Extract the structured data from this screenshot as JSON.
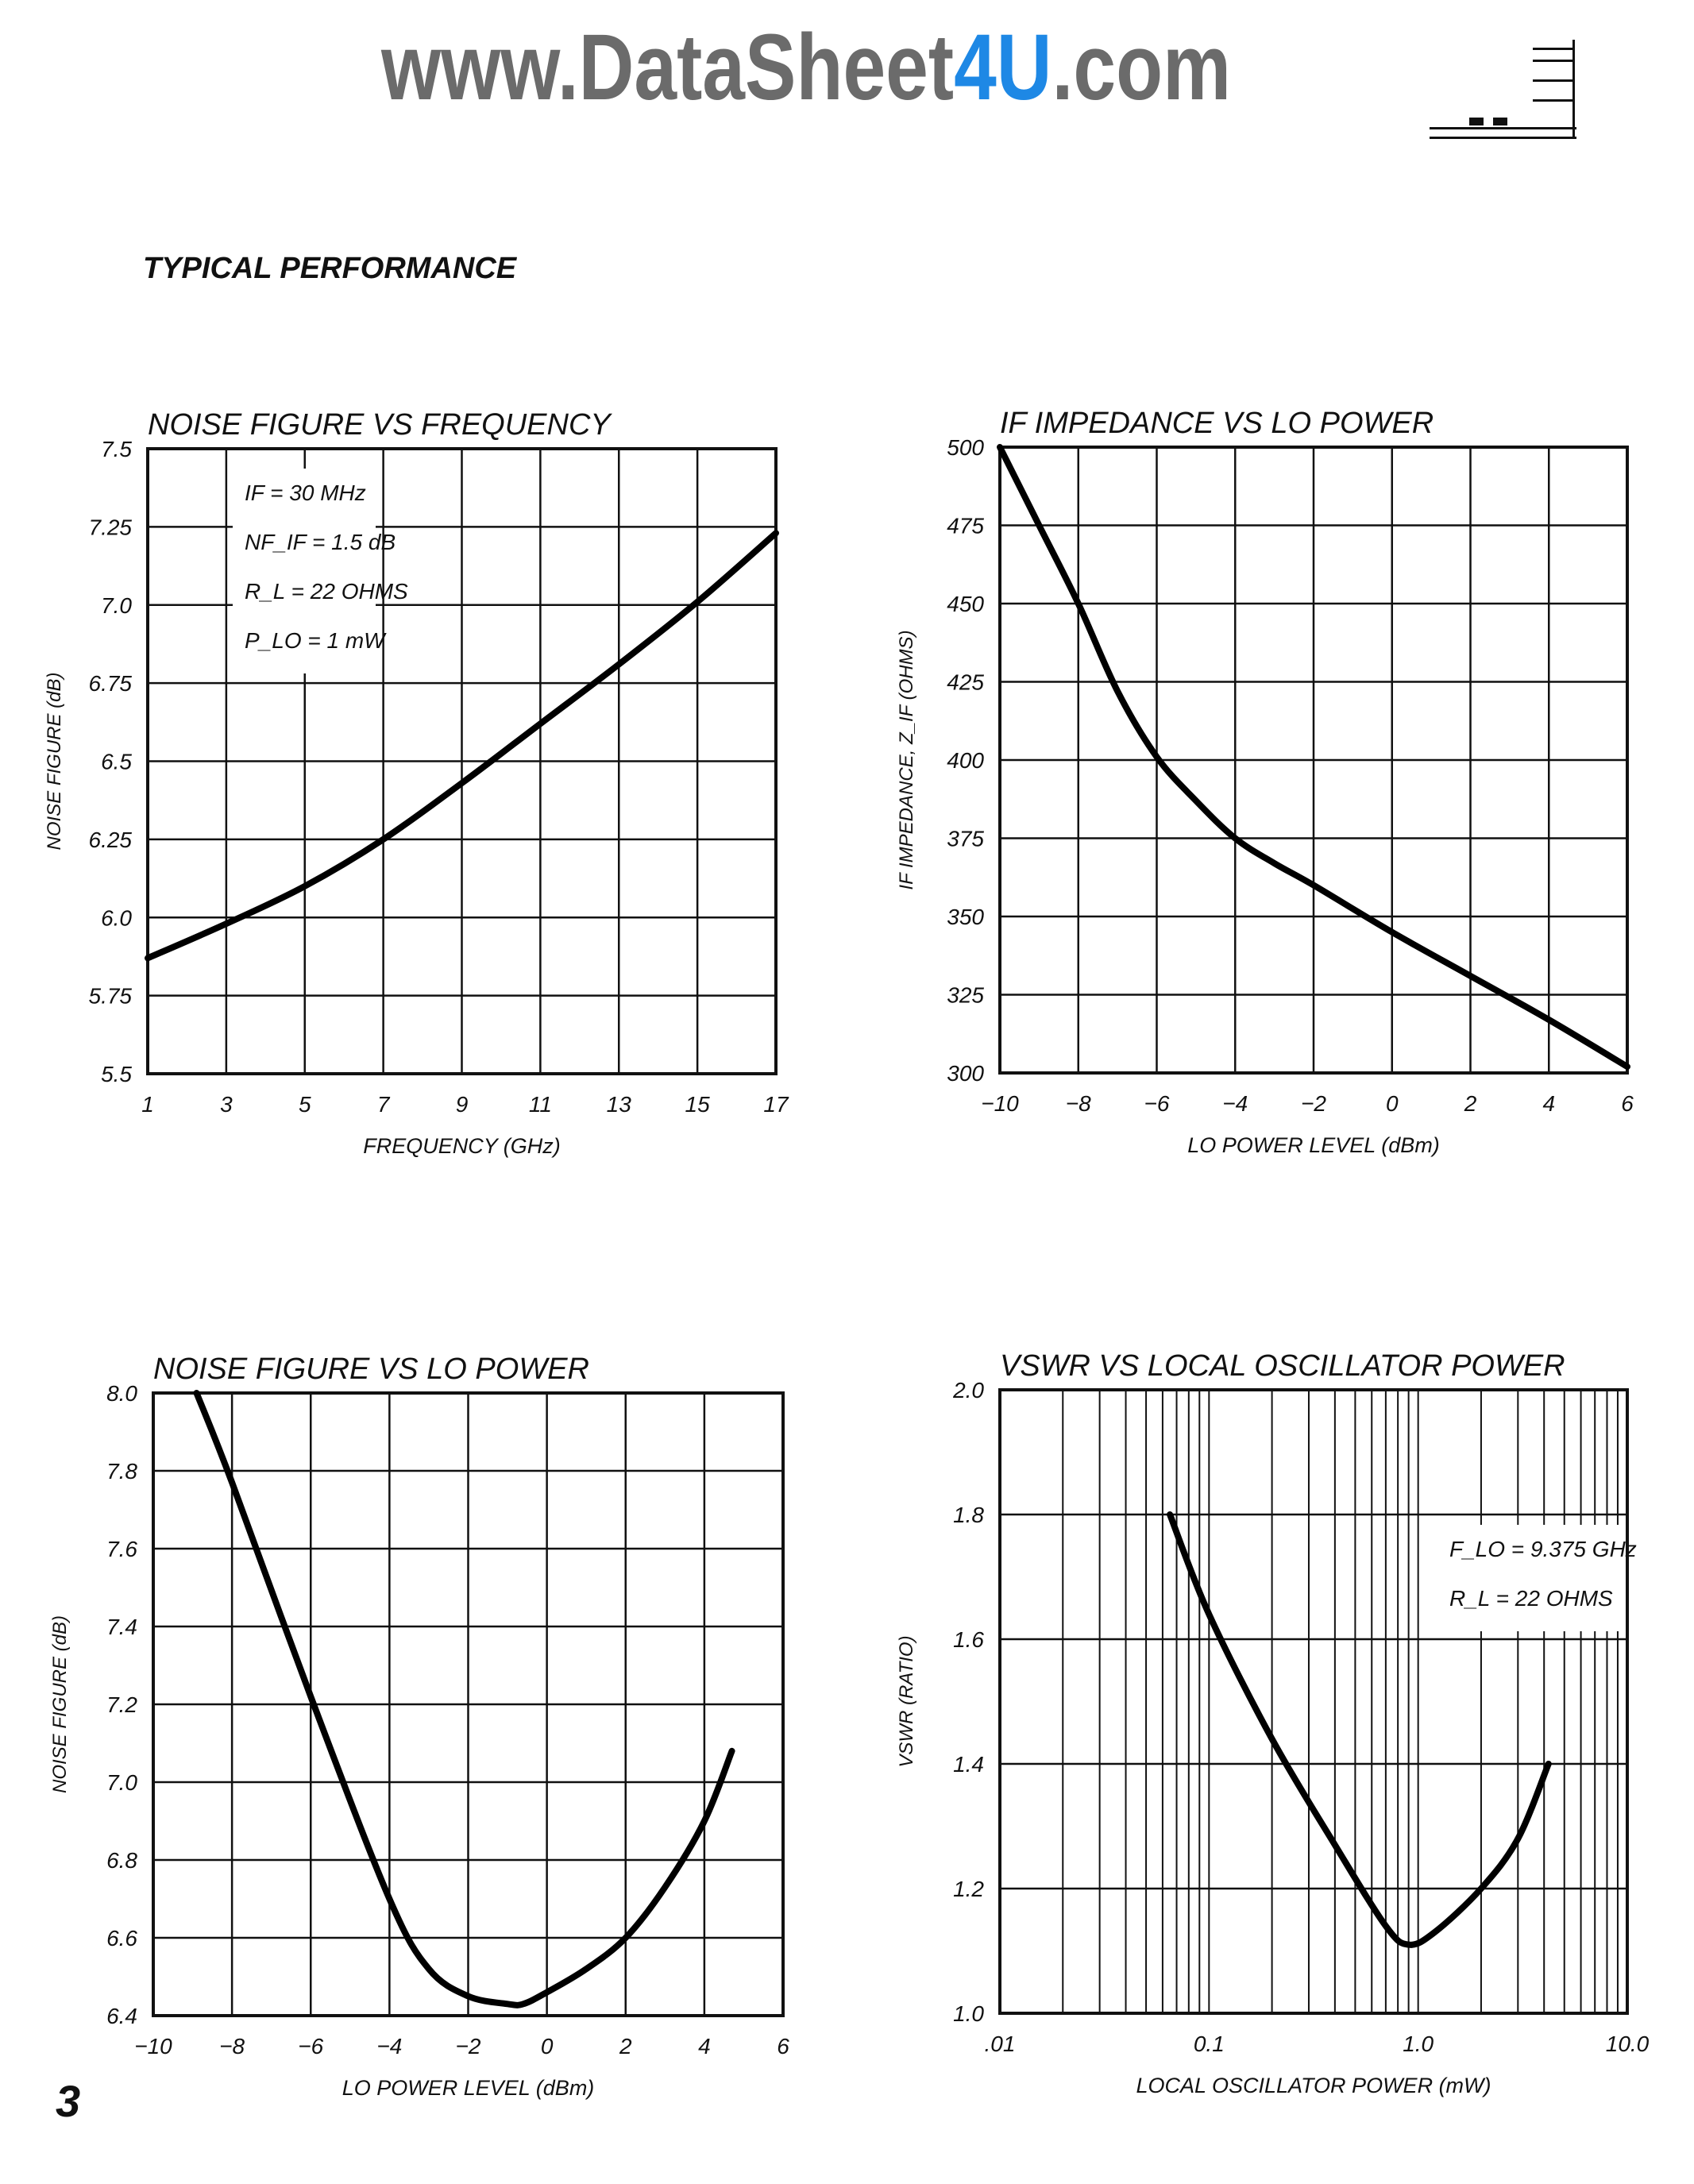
{
  "watermark": {
    "prefix": "www.DataSheet",
    "accent": "4U",
    "suffix": ".com",
    "accent_color": "#1e88e5",
    "text_color": "#6b6b6b"
  },
  "section_title": "TYPICAL PERFORMANCE",
  "page_number": "3",
  "chart_data": [
    {
      "type": "line",
      "title": "NOISE FIGURE VS FREQUENCY",
      "xlabel": "FREQUENCY (GHz)",
      "ylabel": "NOISE FIGURE (dB)",
      "xlim": [
        1,
        17
      ],
      "ylim": [
        5.5,
        7.5
      ],
      "xticks": [
        1,
        3,
        5,
        7,
        9,
        11,
        13,
        15,
        17
      ],
      "xtick_labels": [
        "1",
        "3",
        "5",
        "7",
        "9",
        "11",
        "13",
        "15",
        "17"
      ],
      "yticks": [
        5.5,
        5.75,
        6.0,
        6.25,
        6.5,
        6.75,
        7.0,
        7.25,
        7.5
      ],
      "ytick_labels": [
        "5.5",
        "5.75",
        "6.0",
        "6.25",
        "6.5",
        "6.75",
        "7.0",
        "7.25",
        "7.5"
      ],
      "grid": true,
      "annotations": [
        "IF = 30 MHz",
        "NF_IF = 1.5 dB",
        "R_L = 22 OHMS",
        "P_LO = 1 mW"
      ],
      "x": [
        1,
        3,
        5,
        7,
        9,
        11,
        13,
        15,
        17
      ],
      "y": [
        5.87,
        5.98,
        6.1,
        6.25,
        6.43,
        6.62,
        6.81,
        7.01,
        7.23
      ]
    },
    {
      "type": "line",
      "title": "IF IMPEDANCE VS LO POWER",
      "xlabel": "LO POWER LEVEL (dBm)",
      "ylabel": "IF IMPEDANCE, Z_IF (OHMS)",
      "xlim": [
        -10,
        6
      ],
      "ylim": [
        300,
        500
      ],
      "xticks": [
        -10,
        -8,
        -6,
        -4,
        -2,
        0,
        2,
        4,
        6
      ],
      "xtick_labels": [
        "−10",
        "−8",
        "−6",
        "−4",
        "−2",
        "0",
        "2",
        "4",
        "6"
      ],
      "yticks": [
        300,
        325,
        350,
        375,
        400,
        425,
        450,
        475,
        500
      ],
      "ytick_labels": [
        "300",
        "325",
        "350",
        "375",
        "400",
        "425",
        "450",
        "475",
        "500"
      ],
      "grid": true,
      "annotations": [],
      "x": [
        -10,
        -9,
        -8,
        -7,
        -6,
        -5,
        -4,
        -3,
        -2,
        0,
        2,
        4,
        6
      ],
      "y": [
        500,
        475,
        450,
        422,
        401,
        387,
        375,
        367,
        360,
        345,
        331,
        317,
        302
      ]
    },
    {
      "type": "line",
      "title": "NOISE FIGURE VS LO POWER",
      "xlabel": "LO POWER LEVEL (dBm)",
      "ylabel": "NOISE FIGURE (dB)",
      "xlim": [
        -10,
        6
      ],
      "ylim": [
        6.4,
        8.0
      ],
      "xticks": [
        -10,
        -8,
        -6,
        -4,
        -2,
        0,
        2,
        4,
        6
      ],
      "xtick_labels": [
        "−10",
        "−8",
        "−6",
        "−4",
        "−2",
        "0",
        "2",
        "4",
        "6"
      ],
      "yticks": [
        6.4,
        6.6,
        6.8,
        7.0,
        7.2,
        7.4,
        7.6,
        7.8,
        8.0
      ],
      "ytick_labels": [
        "6.4",
        "6.6",
        "6.8",
        "7.0",
        "7.2",
        "7.4",
        "7.6",
        "7.8",
        "8.0"
      ],
      "grid": true,
      "annotations": [],
      "x": [
        -8.9,
        -8,
        -6,
        -4,
        -3,
        -2,
        -1,
        -0.6,
        0,
        1,
        2,
        3,
        4,
        4.7
      ],
      "y": [
        8.0,
        7.77,
        7.22,
        6.7,
        6.52,
        6.45,
        6.43,
        6.43,
        6.46,
        6.52,
        6.6,
        6.73,
        6.9,
        7.08
      ]
    },
    {
      "type": "line",
      "title": "VSWR VS LOCAL OSCILLATOR POWER",
      "xlabel": "LOCAL OSCILLATOR POWER (mW)",
      "ylabel": "VSWR (RATIO)",
      "xscale": "log",
      "xlim": [
        0.01,
        10
      ],
      "ylim": [
        1.0,
        2.0
      ],
      "xticks": [
        0.01,
        0.1,
        1,
        10
      ],
      "xtick_labels": [
        ".01",
        "0.1",
        "1.0",
        "10.0"
      ],
      "yticks": [
        1.0,
        1.2,
        1.4,
        1.6,
        1.8,
        2.0
      ],
      "ytick_labels": [
        "1.0",
        "1.2",
        "1.4",
        "1.6",
        "1.8",
        "2.0"
      ],
      "grid": true,
      "annotations": [
        "F_LO = 9.375 GHz",
        "R_L = 22 OHMS"
      ],
      "x": [
        0.065,
        0.1,
        0.2,
        0.4,
        0.7,
        0.9,
        1.2,
        2,
        3,
        4.2
      ],
      "y": [
        1.8,
        1.64,
        1.44,
        1.27,
        1.14,
        1.11,
        1.13,
        1.2,
        1.28,
        1.4
      ]
    }
  ]
}
